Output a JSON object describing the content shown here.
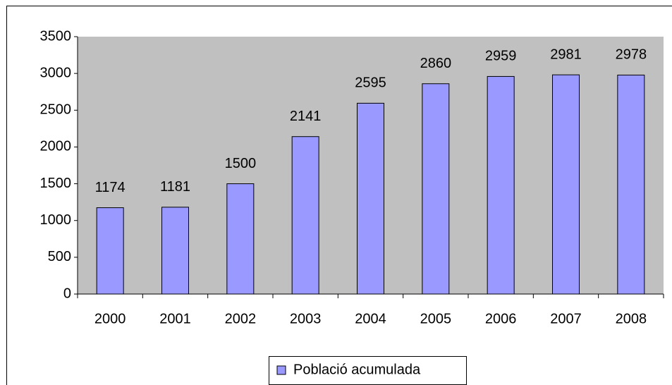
{
  "chart_data": {
    "type": "bar",
    "categories": [
      "2000",
      "2001",
      "2002",
      "2003",
      "2004",
      "2005",
      "2006",
      "2007",
      "2008"
    ],
    "series": [
      {
        "name": "Població acumulada",
        "color": "#9999ff",
        "values": [
          1174,
          1181,
          1500,
          2141,
          2595,
          2860,
          2959,
          2981,
          2978
        ]
      }
    ],
    "ylim": [
      0,
      3500
    ],
    "yticks": [
      0,
      500,
      1000,
      1500,
      2000,
      2500,
      3000,
      3500
    ],
    "plot_background": "#c0c0c0",
    "legend": "bottom"
  }
}
